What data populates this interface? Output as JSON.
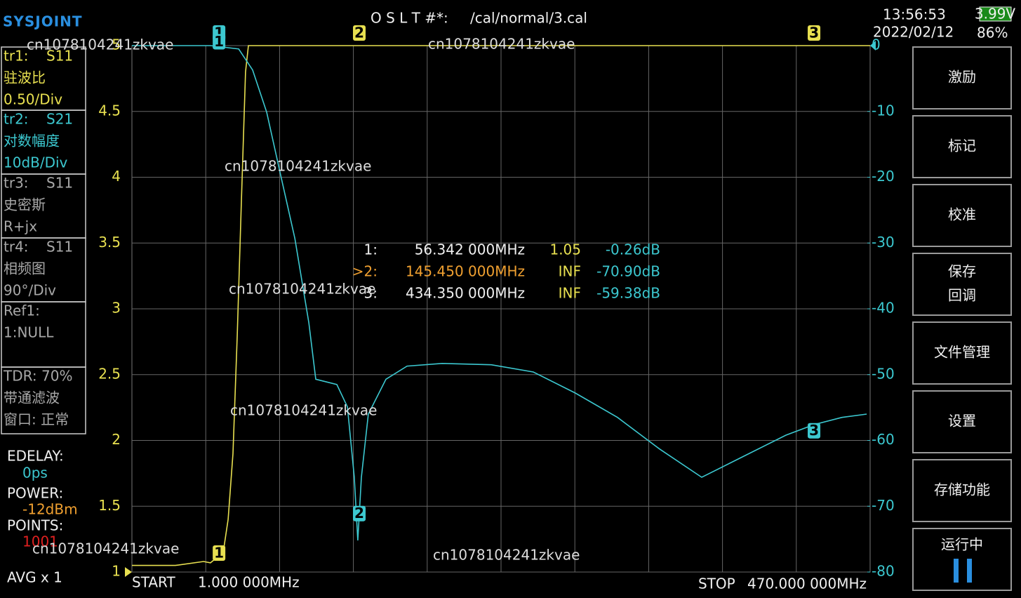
{
  "header": {
    "logo": "SYSJOINT",
    "cal_label": "O S L T #*:",
    "cal_file": "/cal/normal/3.cal",
    "time": "13:56:53",
    "date": "2022/02/12",
    "battery_voltage": "3.99V",
    "battery_percent": "86%"
  },
  "info_boxes": [
    {
      "head": "tr1:",
      "lines": [
        "驻波比",
        "0.50/Div"
      ]
    },
    {
      "head": "tr2:",
      "lines": [
        "对数幅度",
        "10dB/Div"
      ]
    },
    {
      "head": "tr3:",
      "param": "S11",
      "lines": [
        "史密斯",
        "R+jx"
      ]
    },
    {
      "head": "tr4:",
      "param": "S11",
      "lines": [
        "相频图",
        "90°/Div"
      ]
    },
    {
      "head": "Ref1:",
      "lines": [
        "1:NULL"
      ]
    },
    {
      "head": "TDR: 70%",
      "lines": [
        "带通滤波",
        "窗口: 正常"
      ]
    }
  ],
  "status": {
    "edelay_label": "EDELAY:",
    "edelay": "0ps",
    "power_label": "POWER:",
    "power": "-12dBm",
    "points_label": "POINTS:",
    "points": "1001",
    "avg": "AVG x 1"
  },
  "menu": [
    [
      "激励"
    ],
    [
      "标记"
    ],
    [
      "校准"
    ],
    [
      "保存",
      "回调"
    ],
    [
      "文件管理"
    ],
    [
      "设置"
    ],
    [
      "存储功能"
    ],
    [
      "运行中"
    ]
  ],
  "sweep": {
    "start_label": "START",
    "start": "1.000 000MHz",
    "stop_label": "STOP",
    "stop": "470.000 000MHz"
  },
  "marker_table": {
    "rows": [
      [
        "1:",
        "56.342 000MHz",
        "1.05",
        "-0.26dB"
      ],
      [
        ">2:",
        "145.450 000MHz",
        "INF",
        "-70.90dB"
      ],
      [
        "3:",
        "434.350 000MHz",
        "INF",
        "-59.38dB"
      ]
    ]
  },
  "watermarks": [
    "cn1078104241zkvae",
    "cn1078104241zkvae",
    "cn1078104241zkvae",
    "cn1078104241zkvae",
    "cn1078104241zkvae",
    "cn1078104241zkvae",
    "cn1078104241zkvae"
  ],
  "chart_data": {
    "type": "line",
    "xlim": [
      1,
      470
    ],
    "ylim": [
      1,
      5
    ],
    "yticks": [
      1,
      1.5,
      2,
      2.5,
      3,
      3.5,
      4,
      4.5,
      5
    ],
    "y2lim": [
      -80,
      0
    ],
    "y2ticks": [
      0,
      -10,
      -20,
      -30,
      -40,
      -50,
      -60,
      -70,
      -80
    ],
    "grid": true,
    "series": [
      {
        "name": "S11",
        "color": "#e8e050",
        "axis": "y",
        "x": [
          1,
          28.6,
          46.5,
          50.9,
          59.0,
          62.1,
          65.2,
          67.9,
          70.5,
          73.2,
          75.0,
          470
        ],
        "values": [
          1.05,
          1.05,
          1.08,
          1.07,
          1.15,
          1.4,
          1.9,
          2.8,
          3.8,
          4.8,
          5,
          5
        ]
      },
      {
        "name": "S21",
        "color": "#3cc8d0",
        "axis": "y2",
        "x": [
          1,
          50.9,
          68.8,
          77.7,
          86.6,
          95.5,
          104.5,
          113.4,
          117.8,
          131.2,
          137.9,
          142.3,
          144.5,
          146.8,
          151.2,
          162.4,
          175.8,
          198.0,
          229.3,
          256.0,
          282.7,
          309.5,
          336.2,
          363.0,
          389.7,
          416.5,
          434.3,
          452.1,
          467.8
        ],
        "values": [
          0,
          0,
          -0.5,
          -3.7,
          -10.1,
          -19.7,
          -29.3,
          -42.1,
          -50.7,
          -51.5,
          -54.9,
          -65.6,
          -75.2,
          -65.6,
          -56,
          -50.7,
          -48.7,
          -48.3,
          -48.5,
          -49.6,
          -52.8,
          -56.5,
          -61.3,
          -65.6,
          -62.4,
          -59.2,
          -57.6,
          -56.5,
          -56
        ]
      }
    ],
    "markers": [
      {
        "label": "1",
        "x": 56.342,
        "swr": 1.05,
        "s21": -0.26
      },
      {
        "label": "2",
        "x": 145.45,
        "s21": -70.9
      },
      {
        "label": "3",
        "x": 434.35,
        "s21": -59.38
      }
    ]
  }
}
